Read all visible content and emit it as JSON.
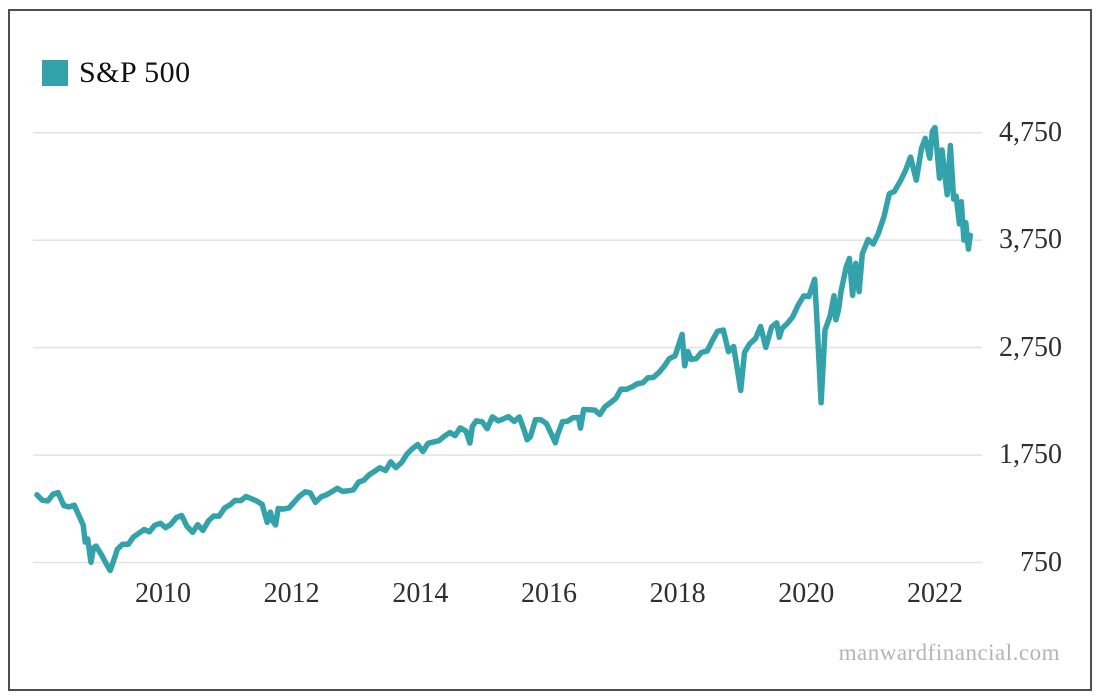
{
  "legend": {
    "label": "S&P 500",
    "color": "#34a2aa"
  },
  "watermark": {
    "text": "manwardfinancial.com"
  },
  "chart_data": {
    "type": "line",
    "title": "",
    "xlabel": "",
    "ylabel": "",
    "legend_position": "top-left",
    "grid": "horizontal-only",
    "grid_color": "#e3e3e3",
    "axis_text_color": "#2f2f2f",
    "x_ticks": [
      2010,
      2012,
      2014,
      2016,
      2018,
      2020,
      2022
    ],
    "y_ticks": [
      750,
      1750,
      2750,
      3750,
      4750
    ],
    "y_tick_labels": [
      "750",
      "1,750",
      "2,750",
      "3,750",
      "4,750"
    ],
    "x_range": [
      2008.0,
      2022.75
    ],
    "y_range": [
      600,
      4950
    ],
    "series": [
      {
        "name": "S&P 500",
        "color": "#34a2aa",
        "points": [
          [
            2008.04,
            1380
          ],
          [
            2008.12,
            1331
          ],
          [
            2008.21,
            1323
          ],
          [
            2008.29,
            1386
          ],
          [
            2008.37,
            1400
          ],
          [
            2008.46,
            1280
          ],
          [
            2008.54,
            1267
          ],
          [
            2008.62,
            1283
          ],
          [
            2008.71,
            1166
          ],
          [
            2008.76,
            1099
          ],
          [
            2008.79,
            940
          ],
          [
            2008.83,
            969
          ],
          [
            2008.88,
            752
          ],
          [
            2008.92,
            887
          ],
          [
            2008.96,
            903
          ],
          [
            2009.04,
            826
          ],
          [
            2009.12,
            735
          ],
          [
            2009.18,
            676
          ],
          [
            2009.25,
            798
          ],
          [
            2009.29,
            873
          ],
          [
            2009.37,
            919
          ],
          [
            2009.46,
            919
          ],
          [
            2009.54,
            987
          ],
          [
            2009.62,
            1021
          ],
          [
            2009.71,
            1057
          ],
          [
            2009.79,
            1036
          ],
          [
            2009.87,
            1096
          ],
          [
            2009.96,
            1115
          ],
          [
            2010.04,
            1074
          ],
          [
            2010.12,
            1104
          ],
          [
            2010.21,
            1169
          ],
          [
            2010.29,
            1187
          ],
          [
            2010.37,
            1089
          ],
          [
            2010.46,
            1031
          ],
          [
            2010.54,
            1102
          ],
          [
            2010.62,
            1049
          ],
          [
            2010.71,
            1141
          ],
          [
            2010.79,
            1183
          ],
          [
            2010.87,
            1181
          ],
          [
            2010.96,
            1258
          ],
          [
            2011.04,
            1286
          ],
          [
            2011.12,
            1327
          ],
          [
            2011.21,
            1326
          ],
          [
            2011.29,
            1364
          ],
          [
            2011.37,
            1345
          ],
          [
            2011.46,
            1321
          ],
          [
            2011.54,
            1292
          ],
          [
            2011.62,
            1123
          ],
          [
            2011.67,
            1219
          ],
          [
            2011.71,
            1131
          ],
          [
            2011.75,
            1099
          ],
          [
            2011.79,
            1253
          ],
          [
            2011.87,
            1247
          ],
          [
            2011.96,
            1258
          ],
          [
            2012.04,
            1312
          ],
          [
            2012.12,
            1366
          ],
          [
            2012.21,
            1408
          ],
          [
            2012.29,
            1398
          ],
          [
            2012.37,
            1310
          ],
          [
            2012.46,
            1362
          ],
          [
            2012.54,
            1379
          ],
          [
            2012.62,
            1407
          ],
          [
            2012.71,
            1441
          ],
          [
            2012.79,
            1412
          ],
          [
            2012.87,
            1416
          ],
          [
            2012.96,
            1426
          ],
          [
            2013.04,
            1498
          ],
          [
            2013.12,
            1515
          ],
          [
            2013.21,
            1569
          ],
          [
            2013.29,
            1598
          ],
          [
            2013.37,
            1631
          ],
          [
            2013.46,
            1606
          ],
          [
            2013.54,
            1686
          ],
          [
            2013.62,
            1633
          ],
          [
            2013.71,
            1682
          ],
          [
            2013.79,
            1757
          ],
          [
            2013.87,
            1806
          ],
          [
            2013.96,
            1848
          ],
          [
            2014.04,
            1783
          ],
          [
            2014.12,
            1859
          ],
          [
            2014.21,
            1872
          ],
          [
            2014.29,
            1884
          ],
          [
            2014.37,
            1924
          ],
          [
            2014.46,
            1960
          ],
          [
            2014.54,
            1931
          ],
          [
            2014.62,
            2003
          ],
          [
            2014.71,
            1972
          ],
          [
            2014.77,
            1862
          ],
          [
            2014.81,
            2018
          ],
          [
            2014.87,
            2068
          ],
          [
            2014.96,
            2059
          ],
          [
            2015.04,
            1995
          ],
          [
            2015.12,
            2105
          ],
          [
            2015.21,
            2068
          ],
          [
            2015.29,
            2086
          ],
          [
            2015.37,
            2107
          ],
          [
            2015.46,
            2063
          ],
          [
            2015.54,
            2104
          ],
          [
            2015.62,
            1972
          ],
          [
            2015.66,
            1893
          ],
          [
            2015.71,
            1920
          ],
          [
            2015.79,
            2079
          ],
          [
            2015.87,
            2080
          ],
          [
            2015.96,
            2044
          ],
          [
            2016.04,
            1940
          ],
          [
            2016.1,
            1864
          ],
          [
            2016.13,
            1932
          ],
          [
            2016.21,
            2060
          ],
          [
            2016.29,
            2065
          ],
          [
            2016.37,
            2097
          ],
          [
            2016.46,
            2099
          ],
          [
            2016.49,
            2001
          ],
          [
            2016.54,
            2174
          ],
          [
            2016.62,
            2171
          ],
          [
            2016.71,
            2168
          ],
          [
            2016.79,
            2126
          ],
          [
            2016.87,
            2199
          ],
          [
            2016.96,
            2239
          ],
          [
            2017.04,
            2279
          ],
          [
            2017.12,
            2364
          ],
          [
            2017.21,
            2363
          ],
          [
            2017.29,
            2384
          ],
          [
            2017.37,
            2412
          ],
          [
            2017.46,
            2423
          ],
          [
            2017.54,
            2470
          ],
          [
            2017.62,
            2472
          ],
          [
            2017.71,
            2519
          ],
          [
            2017.79,
            2575
          ],
          [
            2017.87,
            2648
          ],
          [
            2017.96,
            2674
          ],
          [
            2018.07,
            2873
          ],
          [
            2018.11,
            2581
          ],
          [
            2018.16,
            2714
          ],
          [
            2018.21,
            2641
          ],
          [
            2018.29,
            2648
          ],
          [
            2018.37,
            2705
          ],
          [
            2018.46,
            2718
          ],
          [
            2018.54,
            2816
          ],
          [
            2018.62,
            2902
          ],
          [
            2018.71,
            2914
          ],
          [
            2018.79,
            2712
          ],
          [
            2018.87,
            2760
          ],
          [
            2018.94,
            2506
          ],
          [
            2018.98,
            2351
          ],
          [
            2019.04,
            2704
          ],
          [
            2019.12,
            2785
          ],
          [
            2019.21,
            2834
          ],
          [
            2019.29,
            2946
          ],
          [
            2019.37,
            2752
          ],
          [
            2019.46,
            2942
          ],
          [
            2019.54,
            2980
          ],
          [
            2019.58,
            2847
          ],
          [
            2019.62,
            2926
          ],
          [
            2019.71,
            2977
          ],
          [
            2019.79,
            3038
          ],
          [
            2019.87,
            3141
          ],
          [
            2019.96,
            3231
          ],
          [
            2020.04,
            3226
          ],
          [
            2020.13,
            3386
          ],
          [
            2020.17,
            2954
          ],
          [
            2020.23,
            2237
          ],
          [
            2020.29,
            2912
          ],
          [
            2020.37,
            3044
          ],
          [
            2020.43,
            3232
          ],
          [
            2020.46,
            3009
          ],
          [
            2020.5,
            3100
          ],
          [
            2020.54,
            3271
          ],
          [
            2020.62,
            3500
          ],
          [
            2020.67,
            3580
          ],
          [
            2020.72,
            3237
          ],
          [
            2020.77,
            3534
          ],
          [
            2020.82,
            3270
          ],
          [
            2020.87,
            3622
          ],
          [
            2020.96,
            3756
          ],
          [
            2021.04,
            3714
          ],
          [
            2021.12,
            3811
          ],
          [
            2021.21,
            3973
          ],
          [
            2021.29,
            4181
          ],
          [
            2021.37,
            4204
          ],
          [
            2021.46,
            4297
          ],
          [
            2021.54,
            4395
          ],
          [
            2021.62,
            4523
          ],
          [
            2021.71,
            4308
          ],
          [
            2021.79,
            4605
          ],
          [
            2021.85,
            4698
          ],
          [
            2021.92,
            4513
          ],
          [
            2021.96,
            4766
          ],
          [
            2022.0,
            4797
          ],
          [
            2022.07,
            4327
          ],
          [
            2022.11,
            4589
          ],
          [
            2022.19,
            4173
          ],
          [
            2022.24,
            4631
          ],
          [
            2022.29,
            4132
          ],
          [
            2022.33,
            4158
          ],
          [
            2022.38,
            3901
          ],
          [
            2022.41,
            4108
          ],
          [
            2022.45,
            3750
          ],
          [
            2022.48,
            3912
          ],
          [
            2022.52,
            3667
          ],
          [
            2022.55,
            3795
          ]
        ]
      }
    ]
  }
}
